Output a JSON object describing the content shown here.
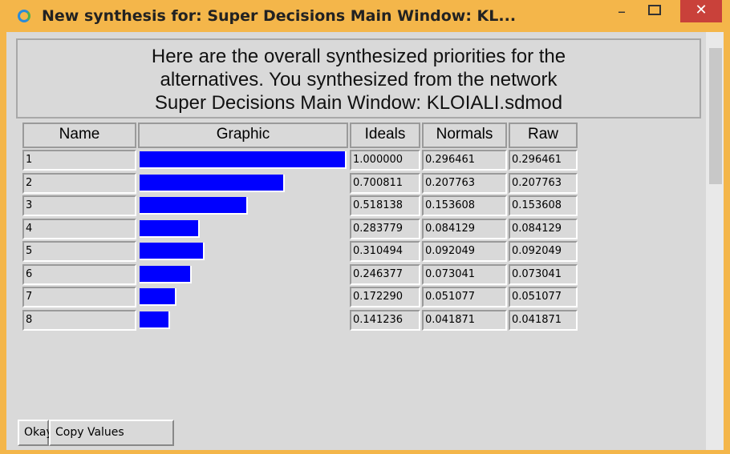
{
  "window": {
    "title": "New synthesis for: Super Decisions Main Window: KL...",
    "message": [
      "Here are the overall synthesized priorities for the",
      "alternatives.  You synthesized from the network",
      "Super Decisions Main Window: KLOIALI.sdmod"
    ]
  },
  "table": {
    "headers": [
      "Name",
      "Graphic",
      "Ideals",
      "Normals",
      "Raw"
    ],
    "rows": [
      {
        "name": "1",
        "ideals": "1.000000",
        "normals": "0.296461",
        "raw": "0.296461"
      },
      {
        "name": "2",
        "ideals": "0.700811",
        "normals": "0.207763",
        "raw": "0.207763"
      },
      {
        "name": "3",
        "ideals": "0.518138",
        "normals": "0.153608",
        "raw": "0.153608"
      },
      {
        "name": "4",
        "ideals": "0.283779",
        "normals": "0.084129",
        "raw": "0.084129"
      },
      {
        "name": "5",
        "ideals": "0.310494",
        "normals": "0.092049",
        "raw": "0.092049"
      },
      {
        "name": "6",
        "ideals": "0.246377",
        "normals": "0.073041",
        "raw": "0.073041"
      },
      {
        "name": "7",
        "ideals": "0.172290",
        "normals": "0.051077",
        "raw": "0.051077"
      },
      {
        "name": "8",
        "ideals": "0.141236",
        "normals": "0.041871",
        "raw": "0.041871"
      }
    ]
  },
  "buttons": [
    "Okay",
    "Copy Values"
  ]
}
